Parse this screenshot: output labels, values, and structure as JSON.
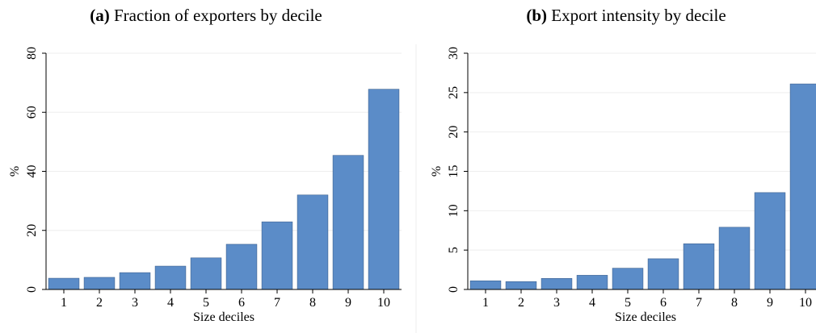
{
  "chart_data": [
    {
      "type": "bar",
      "panel_label": "(a)",
      "title": "Fraction of exporters by decile",
      "xlabel": "Size deciles",
      "ylabel": "%",
      "categories": [
        "1",
        "2",
        "3",
        "4",
        "5",
        "6",
        "7",
        "8",
        "9",
        "10"
      ],
      "values": [
        3.8,
        4.1,
        5.7,
        7.9,
        10.7,
        15.3,
        22.9,
        32,
        45.4,
        67.8
      ],
      "color": "#5b8cc8",
      "ylim": [
        0,
        80
      ],
      "yticks": [
        0,
        20,
        40,
        60,
        80
      ],
      "grid": true
    },
    {
      "type": "bar",
      "panel_label": "(b)",
      "title": "Export intensity by decile",
      "xlabel": "Size deciles",
      "ylabel": "%",
      "categories": [
        "1",
        "2",
        "3",
        "4",
        "5",
        "6",
        "7",
        "8",
        "9",
        "10"
      ],
      "values": [
        1.1,
        1.0,
        1.4,
        1.8,
        2.7,
        3.9,
        5.8,
        7.9,
        12.3,
        26.1
      ],
      "color": "#5b8cc8",
      "ylim": [
        0,
        30
      ],
      "yticks": [
        0,
        5,
        10,
        15,
        20,
        25,
        30
      ],
      "grid": true
    }
  ]
}
